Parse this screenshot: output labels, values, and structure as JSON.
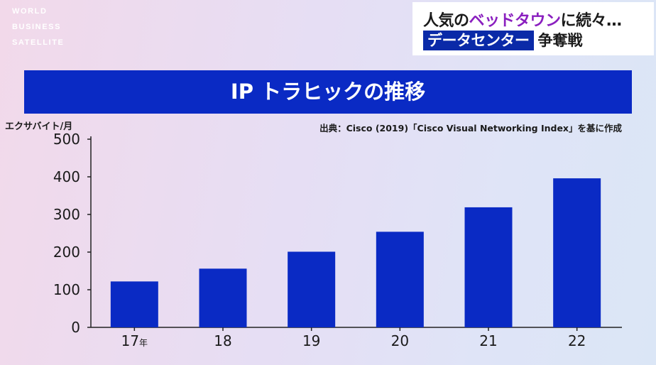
{
  "watermark": [
    "WORLD",
    "BUSINESS",
    "SATELLITE"
  ],
  "headline": {
    "line1_a": "人気の",
    "line1_accent": "ベッドタウン",
    "line1_b": "に続々…",
    "line2_tag": "データセンター",
    "line2_rest": "争奪戦"
  },
  "colors": {
    "bar": "#0a2ac4",
    "title_bg": "#0a2ac4",
    "headline_accent": "#8a1fbf",
    "tag_bg": "#0a2aa8"
  },
  "chart_data": {
    "type": "bar",
    "title": "IP トラヒックの推移",
    "ylabel": "エクサバイト/月",
    "source": "出典：Cisco (2019)「Cisco Visual Networking Index」を基に作成",
    "categories": [
      "17",
      "18",
      "19",
      "20",
      "21",
      "22"
    ],
    "category_suffix": [
      "年",
      "",
      "",
      "",
      "",
      ""
    ],
    "values": [
      122,
      156,
      201,
      254,
      319,
      396
    ],
    "yticks": [
      0,
      100,
      200,
      300,
      400,
      500
    ],
    "ylim": [
      0,
      500
    ],
    "grid": false,
    "legend": "none"
  }
}
